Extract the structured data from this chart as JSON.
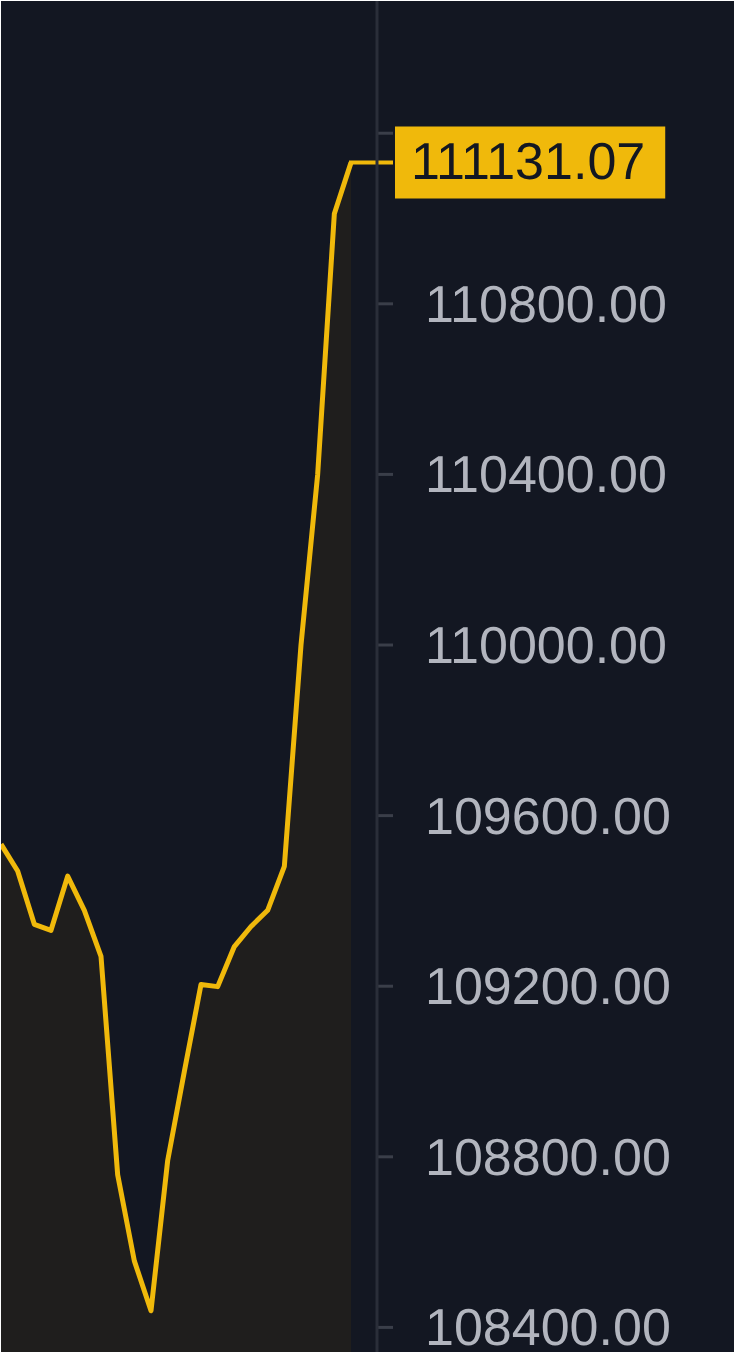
{
  "chart_data": {
    "type": "area",
    "categories": [
      null,
      null,
      null,
      null,
      null,
      null,
      null,
      null,
      null,
      null,
      null,
      null,
      null,
      null,
      null,
      null,
      null,
      null,
      null,
      null,
      null,
      null
    ],
    "series": [
      {
        "color": "#f0b90b",
        "values": [
          109533,
          109470,
          109345,
          109331,
          109458,
          109378,
          109270,
          108758,
          108556,
          108439,
          108791,
          109000,
          109204,
          109199,
          109293,
          109340,
          109378,
          109481,
          110000,
          110400,
          111011,
          111131
        ]
      }
    ],
    "ylim": [
      108340,
      111510
    ],
    "yticks": [
      {
        "value": 108400,
        "label": "108400.00"
      },
      {
        "value": 108800,
        "label": "108800.00"
      },
      {
        "value": 109200,
        "label": "109200.00"
      },
      {
        "value": 109600,
        "label": "109600.00"
      },
      {
        "value": 110000,
        "label": "110000.00"
      },
      {
        "value": 110400,
        "label": "110400.00"
      },
      {
        "value": 110800,
        "label": "110800.00"
      },
      {
        "value": 111200,
        "label": null
      }
    ],
    "ref_lines": [
      {
        "axis": "y",
        "value": 111131.07,
        "label": "111131.07",
        "color": "#f0b90b"
      }
    ],
    "grid": false,
    "tick_labels": "y"
  }
}
